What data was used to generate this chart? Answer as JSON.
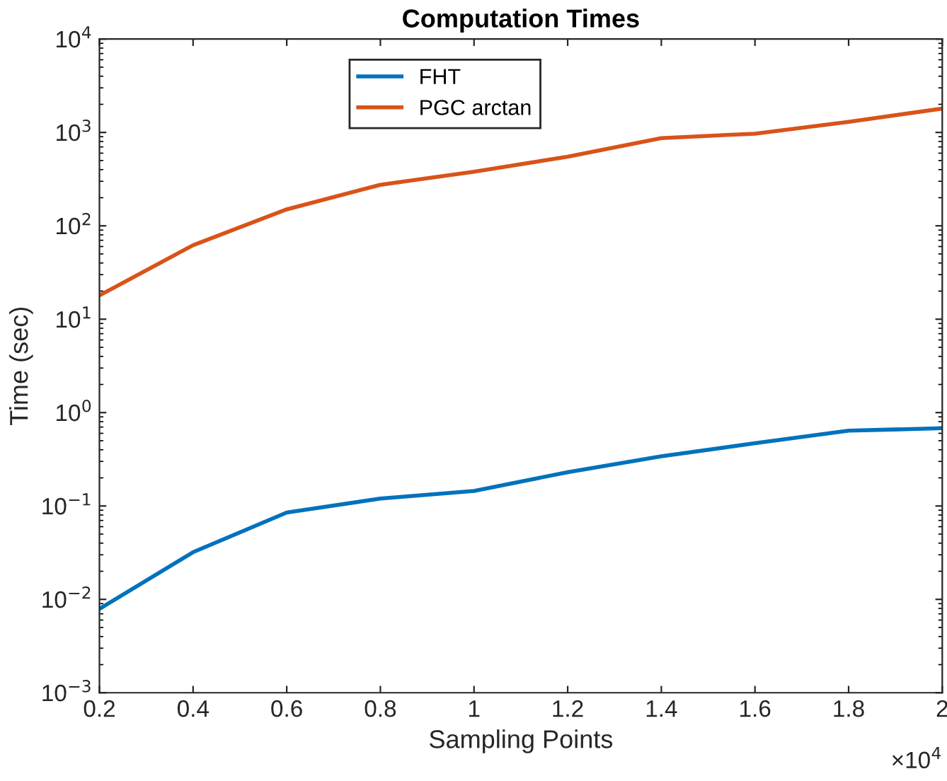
{
  "chart_data": {
    "type": "line",
    "title": "Computation Times",
    "xlabel": "Sampling Points",
    "ylabel": "Time (sec)",
    "x": [
      0.2,
      0.4,
      0.6,
      0.8,
      1,
      1.2,
      1.4,
      1.6,
      1.8,
      2
    ],
    "series": [
      {
        "name": "FHT",
        "color": "#0072bd",
        "values": [
          0.0079,
          0.032,
          0.085,
          0.12,
          0.145,
          0.23,
          0.34,
          0.47,
          0.64,
          0.68
        ]
      },
      {
        "name": "PGC arctan",
        "color": "#d95319",
        "values": [
          18,
          62,
          150,
          275,
          380,
          550,
          870,
          970,
          1300,
          1800
        ]
      }
    ],
    "log": "y",
    "grid": false,
    "legend": "top",
    "marker": "none",
    "line_style": "solid",
    "xlim": [
      0.2,
      2
    ],
    "xticks": [
      0.2,
      0.4,
      0.6,
      0.8,
      1,
      1.2,
      1.4,
      1.6,
      1.8,
      2
    ],
    "ylim": [
      0.001,
      10000
    ],
    "yticks": [
      {
        "value": 0.001,
        "label": "10$^{−3}$"
      },
      {
        "value": 0.01,
        "label": "10$^{−2}$"
      },
      {
        "value": 0.1,
        "label": "10$^{−1}$"
      },
      {
        "value": 1,
        "label": "10$^{0}$"
      },
      {
        "value": 10,
        "label": "10$^{1}$"
      },
      {
        "value": 100,
        "label": "10$^{2}$"
      },
      {
        "value": 1000,
        "label": "10$^{3}$"
      },
      {
        "value": 10000,
        "label": "10$^{4}$"
      }
    ],
    "annotations": [
      "×10$^{4}$"
    ]
  }
}
